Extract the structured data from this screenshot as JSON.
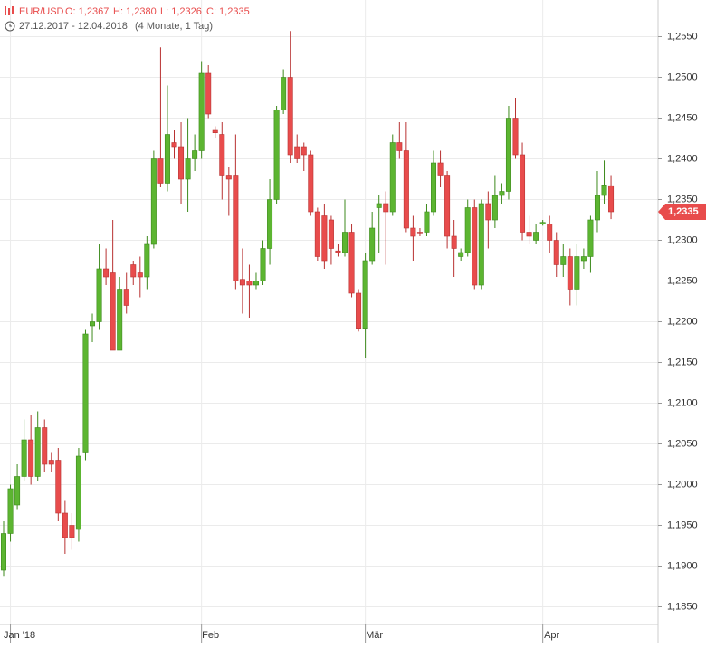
{
  "chart_data": {
    "type": "candlestick",
    "header": {
      "symbol": "EUR/USD",
      "ohlc_labels": [
        "O: 1,2367",
        "H: 1,2380",
        "L: 1,2326",
        "C: 1,2335"
      ],
      "date_range": "27.12.2017 - 12.04.2018",
      "period": "(4 Monate, 1 Tag)"
    },
    "last_price_label": "1,2335",
    "up_color": "#5cb531",
    "down_color": "#e84c4c",
    "grid": true,
    "categories": [
      null,
      "Jan '18",
      null,
      null,
      null,
      null,
      null,
      null,
      null,
      null,
      null,
      null,
      null,
      null,
      null,
      null,
      null,
      null,
      null,
      null,
      null,
      null,
      null,
      null,
      null,
      null,
      null,
      null,
      null,
      "Feb",
      null,
      null,
      null,
      null,
      null,
      null,
      null,
      null,
      null,
      null,
      null,
      null,
      null,
      null,
      null,
      null,
      null,
      null,
      null,
      null,
      null,
      null,
      null,
      "Mär",
      null,
      null,
      null,
      null,
      null,
      null,
      null,
      null,
      null,
      null,
      null,
      null,
      null,
      null,
      null,
      null,
      null,
      null,
      null,
      null,
      null,
      null,
      null,
      null,
      null,
      "Apr",
      null,
      null,
      null,
      null,
      null,
      null,
      null,
      null,
      null,
      null
    ],
    "open": [
      1.1895,
      1.194,
      1.1975,
      1.201,
      1.2055,
      1.201,
      1.207,
      1.203,
      1.203,
      1.1965,
      1.195,
      1.1945,
      1.204,
      1.2195,
      1.22,
      1.2265,
      1.226,
      1.2165,
      1.224,
      1.227,
      1.226,
      1.2255,
      1.2295,
      1.24,
      1.237,
      1.242,
      1.2415,
      1.2375,
      1.24,
      1.241,
      1.2505,
      1.2435,
      1.243,
      1.238,
      1.238,
      1.2252,
      1.225,
      1.2245,
      1.225,
      1.229,
      1.235,
      1.246,
      1.25,
      1.2415,
      1.2415,
      1.2405,
      1.2335,
      1.233,
      1.2325,
      1.2287,
      1.2285,
      1.231,
      1.2235,
      1.2192,
      1.2275,
      1.234,
      1.2345,
      1.2335,
      1.242,
      1.241,
      1.2315,
      1.231,
      1.231,
      1.2335,
      1.2395,
      1.238,
      1.2305,
      1.228,
      1.2285,
      1.234,
      1.2245,
      1.2345,
      1.2325,
      1.2355,
      1.236,
      1.245,
      1.2405,
      1.231,
      1.23,
      1.232,
      1.232,
      1.23,
      1.227,
      1.228,
      1.224,
      1.2275,
      1.228,
      1.2325,
      1.2355,
      1.2367
    ],
    "high": [
      1.1955,
      1.2,
      1.2025,
      1.208,
      1.2085,
      1.209,
      1.208,
      1.204,
      1.2045,
      1.198,
      1.1965,
      1.2045,
      1.219,
      1.221,
      1.2295,
      1.229,
      1.2325,
      1.2255,
      1.226,
      1.2275,
      1.228,
      1.2305,
      1.241,
      1.2537,
      1.249,
      1.2435,
      1.2445,
      1.245,
      1.243,
      1.252,
      1.2515,
      1.244,
      1.2445,
      1.239,
      1.243,
      1.229,
      1.227,
      1.226,
      1.23,
      1.2375,
      1.2465,
      1.251,
      1.2557,
      1.243,
      1.242,
      1.241,
      1.234,
      1.2345,
      1.233,
      1.2295,
      1.235,
      1.232,
      1.224,
      1.2285,
      1.2335,
      1.2355,
      1.236,
      1.243,
      1.2445,
      1.2445,
      1.233,
      1.2315,
      1.2345,
      1.241,
      1.241,
      1.2385,
      1.2325,
      1.229,
      1.235,
      1.235,
      1.235,
      1.236,
      1.238,
      1.237,
      1.2465,
      1.2475,
      1.242,
      1.233,
      1.232,
      1.2325,
      1.233,
      1.231,
      1.2295,
      1.229,
      1.2295,
      1.229,
      1.233,
      1.2385,
      1.2398,
      1.238
    ],
    "low": [
      1.1888,
      1.193,
      1.197,
      1.2005,
      1.2,
      1.2005,
      1.2015,
      1.2015,
      1.1955,
      1.1915,
      1.192,
      1.193,
      1.203,
      1.2175,
      1.219,
      1.2245,
      1.2165,
      1.2165,
      1.221,
      1.2245,
      1.223,
      1.224,
      1.229,
      1.2365,
      1.236,
      1.24,
      1.2345,
      1.2335,
      1.2385,
      1.24,
      1.245,
      1.2425,
      1.235,
      1.233,
      1.224,
      1.221,
      1.2205,
      1.224,
      1.2245,
      1.227,
      1.2345,
      1.2455,
      1.2395,
      1.2395,
      1.2385,
      1.233,
      1.2275,
      1.2265,
      1.227,
      1.228,
      1.228,
      1.223,
      1.2188,
      1.2155,
      1.227,
      1.2285,
      1.227,
      1.233,
      1.24,
      1.231,
      1.2275,
      1.2305,
      1.2305,
      1.233,
      1.2365,
      1.229,
      1.2255,
      1.2275,
      1.228,
      1.224,
      1.224,
      1.229,
      1.2315,
      1.2345,
      1.235,
      1.24,
      1.23,
      1.2295,
      1.2295,
      1.2318,
      1.2285,
      1.2255,
      1.2255,
      1.222,
      1.222,
      1.2265,
      1.226,
      1.231,
      1.2345,
      1.2326
    ],
    "close": [
      1.194,
      1.1995,
      1.201,
      1.2055,
      1.201,
      1.207,
      1.2025,
      1.2025,
      1.1965,
      1.1935,
      1.1935,
      1.2035,
      1.2185,
      1.22,
      1.2265,
      1.2255,
      1.2165,
      1.224,
      1.222,
      1.2255,
      1.2255,
      1.2295,
      1.24,
      1.237,
      1.243,
      1.2415,
      1.2375,
      1.24,
      1.241,
      1.2505,
      1.2455,
      1.2432,
      1.238,
      1.2375,
      1.225,
      1.2245,
      1.2245,
      1.225,
      1.229,
      1.235,
      1.246,
      1.25,
      1.2405,
      1.24,
      1.2405,
      1.2335,
      1.228,
      1.2275,
      1.229,
      1.2285,
      1.231,
      1.2235,
      1.2192,
      1.2275,
      1.2315,
      1.2345,
      1.2335,
      1.242,
      1.241,
      1.2315,
      1.2305,
      1.2308,
      1.2335,
      1.2395,
      1.238,
      1.2305,
      1.229,
      1.2285,
      1.234,
      1.2245,
      1.2345,
      1.2325,
      1.2355,
      1.236,
      1.245,
      1.2405,
      1.231,
      1.2305,
      1.231,
      1.2322,
      1.23,
      1.227,
      1.228,
      1.224,
      1.228,
      1.228,
      1.2325,
      1.2355,
      1.2368,
      1.2335
    ],
    "ylim": [
      1.1805,
      1.2595
    ],
    "yticks": [
      {
        "value": 1.185,
        "label": "1,1850"
      },
      {
        "value": 1.19,
        "label": "1,1900"
      },
      {
        "value": 1.195,
        "label": "1,1950"
      },
      {
        "value": 1.2,
        "label": "1,2000"
      },
      {
        "value": 1.205,
        "label": "1,2050"
      },
      {
        "value": 1.21,
        "label": "1,2100"
      },
      {
        "value": 1.215,
        "label": "1,2150"
      },
      {
        "value": 1.22,
        "label": "1,2200"
      },
      {
        "value": 1.225,
        "label": "1,2250"
      },
      {
        "value": 1.23,
        "label": "1,2300"
      },
      {
        "value": 1.235,
        "label": "1,2350"
      },
      {
        "value": 1.24,
        "label": "1,2400"
      },
      {
        "value": 1.245,
        "label": "1,2450"
      },
      {
        "value": 1.25,
        "label": "1,2500"
      },
      {
        "value": 1.255,
        "label": "1,2550"
      }
    ]
  }
}
